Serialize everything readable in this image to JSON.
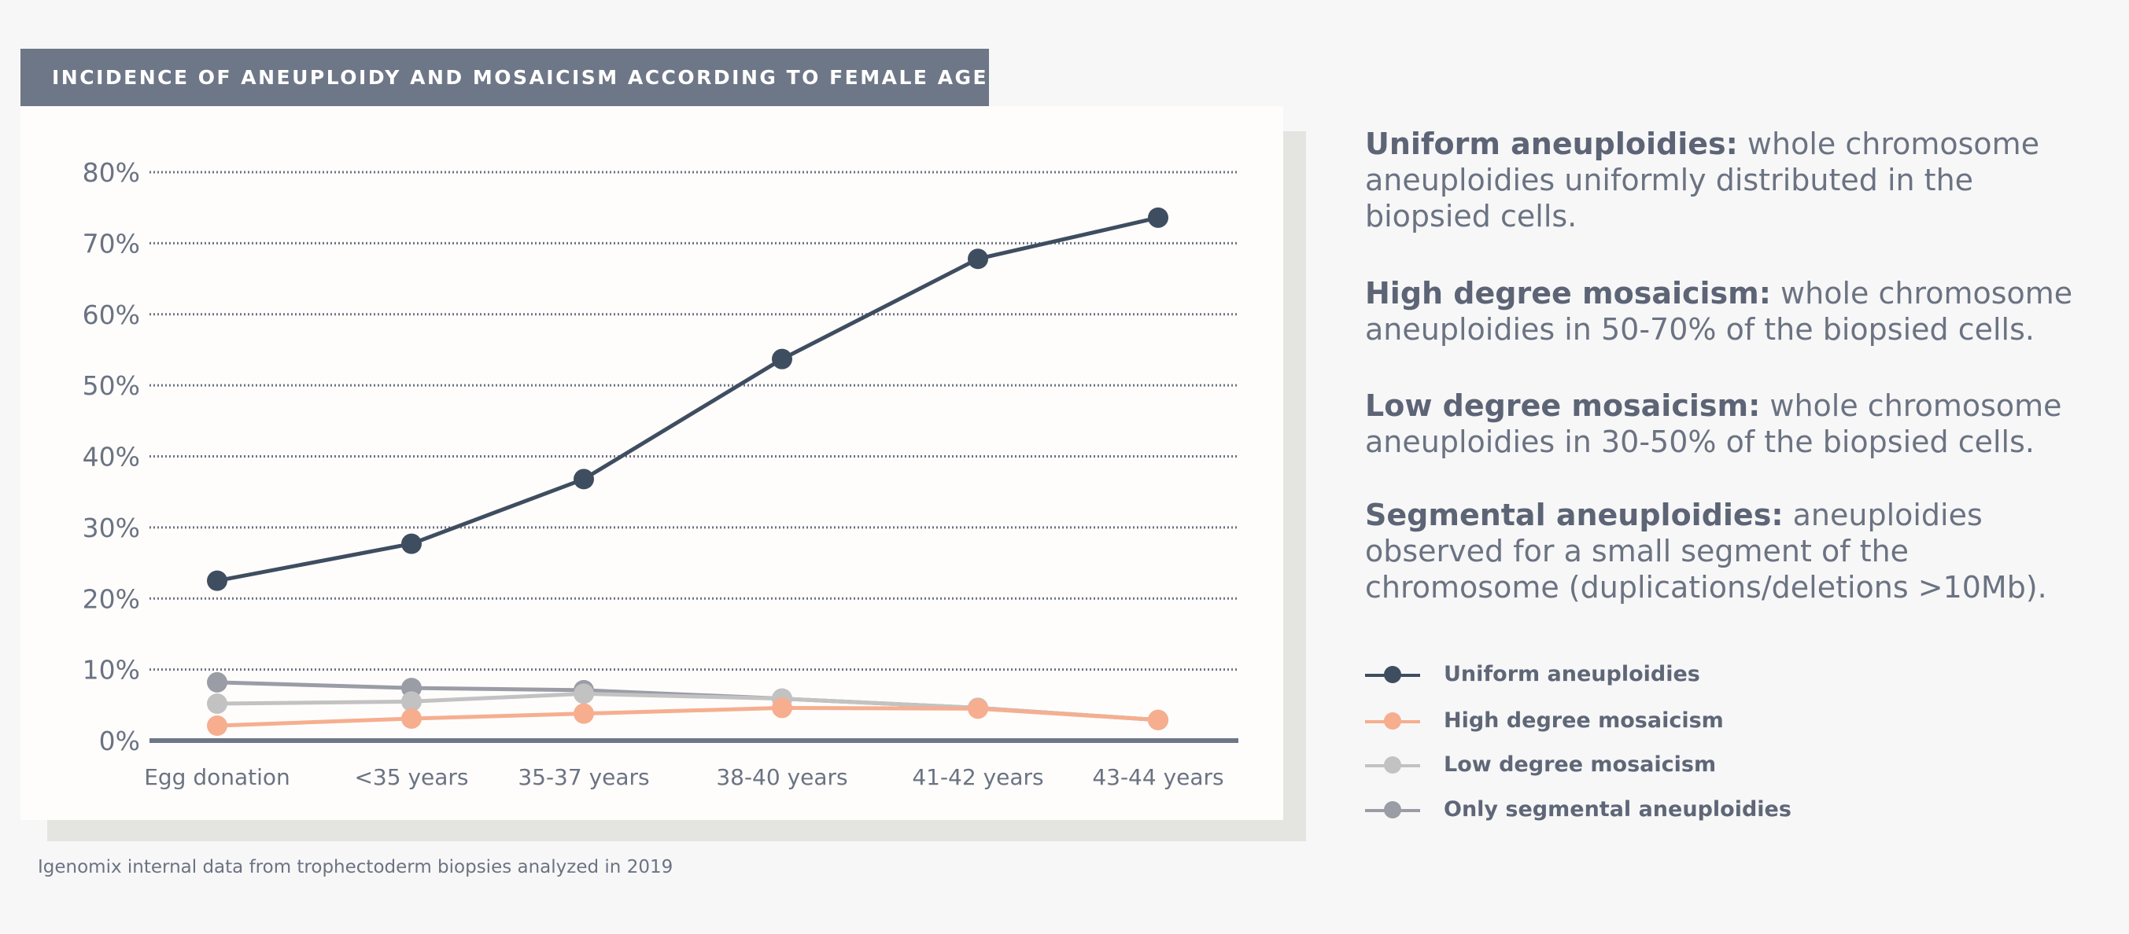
{
  "chart_data": {
    "type": "line",
    "title": "INCIDENCE OF ANEUPLOIDY AND MOSAICISM ACCORDING  TO FEMALE AGE",
    "categories": [
      "Egg donation",
      "<35 years",
      "35-37 years",
      "38-40 years",
      "41-42 years",
      "43-44 years"
    ],
    "ylim": [
      0,
      80
    ],
    "yticks": [
      "0%",
      "10%",
      "20%",
      "30%",
      "40%",
      "50%",
      "60%",
      "70%",
      "80%"
    ],
    "grid": true,
    "legend_position": "right",
    "series": [
      {
        "name": "Uniform aneuploidies",
        "color": "#3f4d60",
        "values": [
          22.5,
          27.7,
          36.8,
          53.7,
          67.8,
          73.6
        ]
      },
      {
        "name": "High degree mosaicism",
        "color": "#f6ae8f",
        "values": [
          2.1,
          3.1,
          3.8,
          4.6,
          4.5,
          2.9
        ]
      },
      {
        "name": "Low degree mosaicism",
        "color": "#c2c2c2",
        "values": [
          5.2,
          5.5,
          6.6,
          5.9,
          4.6,
          2.9
        ]
      },
      {
        "name": "Only segmental aneuploidies",
        "color": "#9a9ca6",
        "values": [
          8.2,
          7.4,
          7.1,
          5.9,
          4.6,
          2.9
        ]
      }
    ]
  },
  "definitions": [
    {
      "term": "Uniform aneuploidies:",
      "text": " whole chromosome aneuploidies uniformly distributed in the biopsied cells."
    },
    {
      "term": "High degree mosaicism:",
      "text": " whole chromosome aneuploidies in 50-70% of the biopsied cells."
    },
    {
      "term": "Low degree mosaicism:",
      "text": " whole chromosome aneuploidies in 30-50% of the biopsied cells."
    },
    {
      "term": "Segmental aneuploidies:",
      "text": " aneuploidies observed for a small segment of the chromosome (duplications/deletions >10Mb)."
    }
  ],
  "footnote": "Igenomix internal data from trophectoderm biopsies analyzed in 2019"
}
